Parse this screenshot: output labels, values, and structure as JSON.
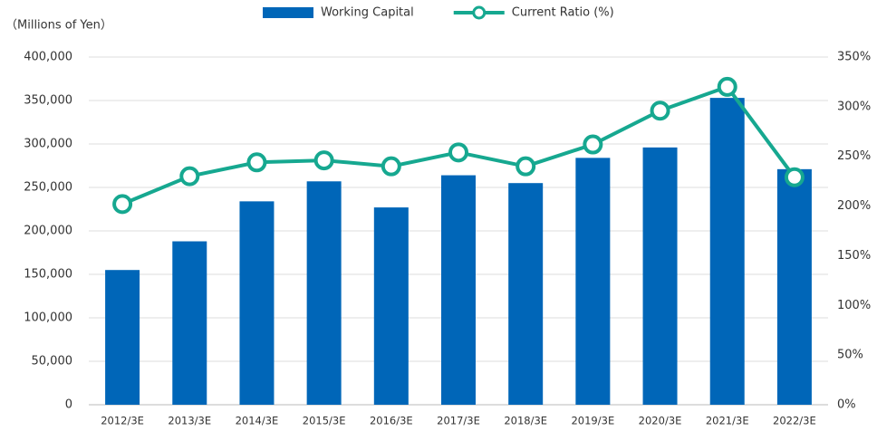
{
  "chart_data": {
    "type": "bar-line",
    "unit_label": "（Millions of Yen）",
    "categories": [
      "2012/3E",
      "2013/3E",
      "2014/3E",
      "2015/3E",
      "2016/3E",
      "2017/3E",
      "2018/3E",
      "2019/3E",
      "2020/3E",
      "2021/3E",
      "2022/3E"
    ],
    "series": [
      {
        "name": "Working Capital",
        "type": "bar",
        "color": "#0066b8",
        "values": [
          155000,
          188000,
          234000,
          257000,
          227000,
          264000,
          255000,
          284000,
          296000,
          353000,
          271000
        ]
      },
      {
        "name": "Current Ratio (%)",
        "type": "line",
        "axis": "y2",
        "color": "#16a890",
        "values": [
          202,
          230,
          244,
          246,
          240,
          254,
          240,
          262,
          296,
          320,
          229
        ]
      }
    ],
    "ylim": [
      0,
      400000
    ],
    "yticks": [
      0,
      {
        "value": 50000,
        "label": "50,000"
      },
      {
        "value": 100000,
        "label": "100,000"
      },
      {
        "value": 150000,
        "label": "150,000"
      },
      {
        "value": 200000,
        "label": "200,000"
      },
      {
        "value": 250000,
        "label": "250,000"
      },
      {
        "value": 300000,
        "label": "300,000"
      },
      {
        "value": 350000,
        "label": "350,000"
      },
      {
        "value": 400000,
        "label": "400,000"
      }
    ],
    "y2lim": [
      0,
      350
    ],
    "y2ticks": [
      {
        "value": 0,
        "label": "0%"
      },
      {
        "value": 50,
        "label": "50%"
      },
      {
        "value": 100,
        "label": "100%"
      },
      {
        "value": 150,
        "label": "150%"
      },
      {
        "value": 200,
        "label": "200%"
      },
      {
        "value": 250,
        "label": "250%"
      },
      {
        "value": 300,
        "label": "300%"
      },
      {
        "value": 350,
        "label": "350%"
      }
    ],
    "grid": true,
    "legend": "top"
  }
}
